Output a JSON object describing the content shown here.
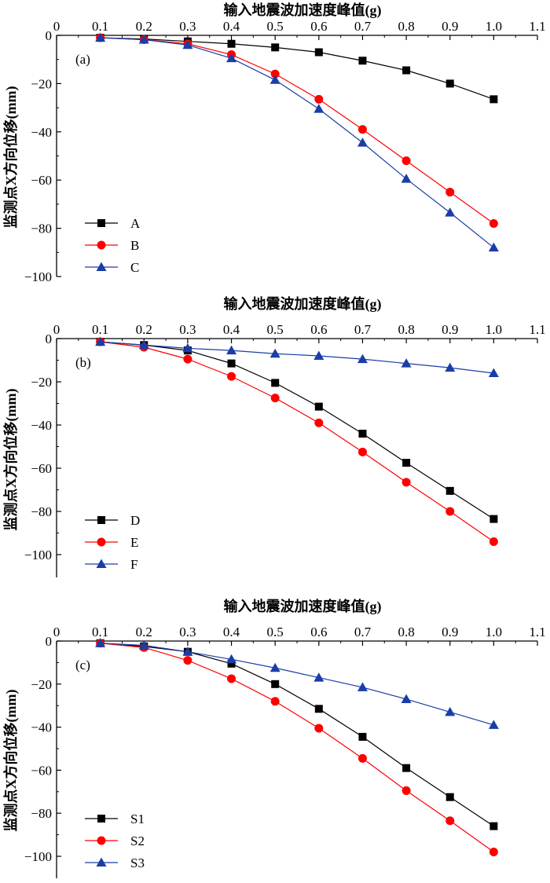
{
  "chart_data": [
    {
      "type": "line",
      "panel_label": "(a)",
      "title": "输入地震波加速度峰值(g)",
      "xlabel": "输入地震波加速度峰值(g)",
      "ylabel": "监测点X方向位移(mm)",
      "xlim": [
        0,
        1.1
      ],
      "ylim": [
        -100,
        0
      ],
      "x_axis_position": "top",
      "xticks": [
        "0",
        "0.1",
        "0.2",
        "0.3",
        "0.4",
        "0.5",
        "0.6",
        "0.7",
        "0.8",
        "0.9",
        "1.0",
        "1.1"
      ],
      "yticks": [
        "0",
        "−20",
        "−40",
        "−60",
        "−80",
        "−100"
      ],
      "legend_position": "bottom-left",
      "x": [
        0.1,
        0.2,
        0.3,
        0.4,
        0.5,
        0.6,
        0.7,
        0.8,
        0.9,
        1.0
      ],
      "series": [
        {
          "name": "A",
          "color": "#000000",
          "marker": "square",
          "values": [
            -1,
            -1.5,
            -2.5,
            -3.5,
            -5,
            -7,
            -10.5,
            -14.5,
            -20,
            -26.5
          ]
        },
        {
          "name": "B",
          "color": "#ff0000",
          "marker": "circle",
          "values": [
            -1,
            -1.8,
            -3.5,
            -8,
            -16,
            -26.5,
            -39,
            -52,
            -65,
            -78
          ]
        },
        {
          "name": "C",
          "color": "#1a3ea6",
          "marker": "triangle",
          "values": [
            -1,
            -1.8,
            -4,
            -9.5,
            -18.5,
            -30.5,
            -44.5,
            -59.5,
            -73.5,
            -88
          ]
        }
      ]
    },
    {
      "type": "line",
      "panel_label": "(b)",
      "title": "输入地震波加速度峰值(g)",
      "xlabel": "输入地震波加速度峰值(g)",
      "ylabel": "监测点X方向位移(mm)",
      "xlim": [
        0,
        1.1
      ],
      "ylim": [
        -110,
        0
      ],
      "x_axis_position": "top",
      "xticks": [
        "0",
        "0.1",
        "0.2",
        "0.3",
        "0.4",
        "0.5",
        "0.6",
        "0.7",
        "0.8",
        "0.9",
        "1.0",
        "1.1"
      ],
      "yticks": [
        "0",
        "−20",
        "−40",
        "−60",
        "−80",
        "−100"
      ],
      "legend_position": "bottom-left",
      "x": [
        0.1,
        0.2,
        0.3,
        0.4,
        0.5,
        0.6,
        0.7,
        0.8,
        0.9,
        1.0
      ],
      "series": [
        {
          "name": "D",
          "color": "#000000",
          "marker": "square",
          "values": [
            -1.5,
            -3,
            -5.5,
            -11.5,
            -20.5,
            -31.5,
            -44,
            -57.5,
            -70.5,
            -83.5
          ]
        },
        {
          "name": "E",
          "color": "#ff0000",
          "marker": "circle",
          "values": [
            -1.5,
            -4,
            -9.5,
            -17.5,
            -27.5,
            -39,
            -52.5,
            -66.5,
            -80,
            -94
          ]
        },
        {
          "name": "F",
          "color": "#1a3ea6",
          "marker": "triangle",
          "values": [
            -1.5,
            -3,
            -4.5,
            -5.5,
            -7,
            -8,
            -9.5,
            -11.5,
            -13.5,
            -16
          ]
        }
      ]
    },
    {
      "type": "line",
      "panel_label": "(c)",
      "title": "输入地震波加速度峰值(g)",
      "xlabel": "输入地震波加速度峰值(g)",
      "ylabel": "监测点X方向位移(mm)",
      "xlim": [
        0,
        1.1
      ],
      "ylim": [
        -110,
        0
      ],
      "x_axis_position": "top",
      "xticks": [
        "0",
        "0.1",
        "0.2",
        "0.3",
        "0.4",
        "0.5",
        "0.6",
        "0.7",
        "0.8",
        "0.9",
        "1.0",
        "1.1"
      ],
      "yticks": [
        "0",
        "−20",
        "−40",
        "−60",
        "−80",
        "−100"
      ],
      "legend_position": "bottom-left",
      "x": [
        0.1,
        0.2,
        0.3,
        0.4,
        0.5,
        0.6,
        0.7,
        0.8,
        0.9,
        1.0
      ],
      "series": [
        {
          "name": "S1",
          "color": "#000000",
          "marker": "square",
          "values": [
            -1,
            -2.5,
            -5,
            -10.5,
            -20,
            -31.5,
            -44.5,
            -59,
            -72.5,
            -86
          ]
        },
        {
          "name": "S2",
          "color": "#ff0000",
          "marker": "circle",
          "values": [
            -1,
            -3,
            -9,
            -17.5,
            -28,
            -40.5,
            -54.5,
            -69.5,
            -83.5,
            -98
          ]
        },
        {
          "name": "S3",
          "color": "#1a3ea6",
          "marker": "triangle",
          "values": [
            -1,
            -2,
            -5,
            -8.5,
            -12.5,
            -17,
            -21.5,
            -27,
            -33,
            -39
          ]
        }
      ]
    }
  ]
}
